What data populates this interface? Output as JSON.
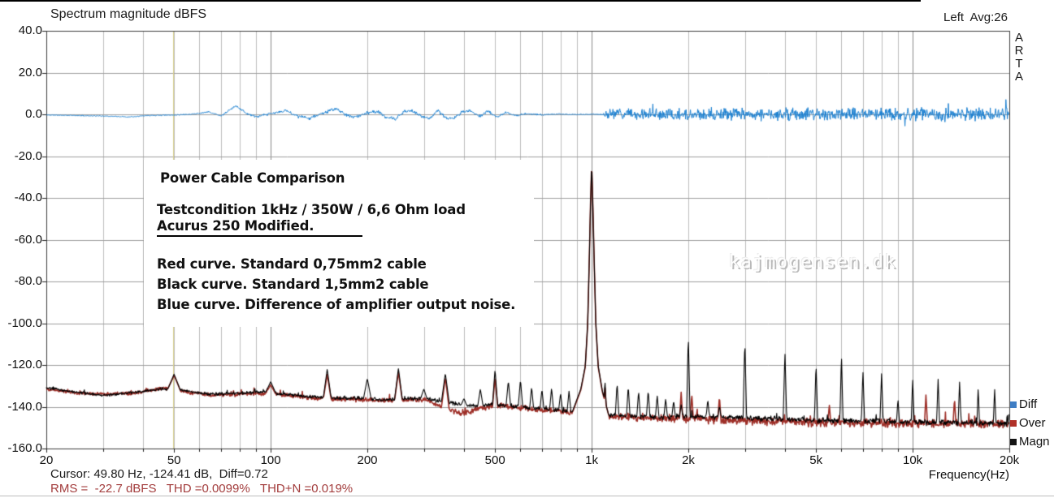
{
  "header": {
    "title": "Spectrum magnitude dBFS",
    "avg_label": "Left  Avg:26"
  },
  "brand": {
    "vertical_label": "ARTA"
  },
  "watermark": "kajmogensen.dk",
  "annotation": {
    "heading": "Power Cable Comparison",
    "testcondition": "Testcondition 1kHz / 350W / 6,6 Ohm load",
    "device": "Acurus 250 Modified.",
    "curve_notes": [
      "Red curve. Standard 0,75mm2 cable",
      "Black curve. Standard 1,5mm2 cable",
      "Blue curve. Difference of amplifier output noise."
    ]
  },
  "legend": [
    {
      "label": "Diff",
      "color": "#3f7ec4"
    },
    {
      "label": "Over",
      "color": "#b03028"
    },
    {
      "label": "Magn",
      "color": "#141414"
    }
  ],
  "status_bar": {
    "cursor_line": "Cursor: 49.80 Hz, -124.41 dB,  Diff=0.72",
    "measure_line": "RMS =  -22.7 dBFS   THD =0.0099%   THD+N =0.019%",
    "measure_color": "#a33d3d"
  },
  "axis": {
    "x_title": "Frequency(Hz)"
  },
  "chart_data": {
    "type": "line",
    "title": "Spectrum magnitude dBFS",
    "xlabel": "Frequency(Hz)",
    "ylabel": "dBFS",
    "x_scale": "log",
    "xlim": [
      20,
      20000
    ],
    "ylim": [
      -160,
      40
    ],
    "grid": true,
    "legend_position": "right-bottom",
    "y_ticks": [
      {
        "db": 40,
        "label": "40.0"
      },
      {
        "db": 20,
        "label": "20.0"
      },
      {
        "db": 0,
        "label": "0.0"
      },
      {
        "db": -20,
        "label": "-20.0"
      },
      {
        "db": -40,
        "label": "-40.0"
      },
      {
        "db": -60,
        "label": "-60.0"
      },
      {
        "db": -80,
        "label": "-80.0"
      },
      {
        "db": -100,
        "label": "-100.0"
      },
      {
        "db": -120,
        "label": "-120.0"
      },
      {
        "db": -140,
        "label": "-140.0"
      },
      {
        "db": -160,
        "label": "-160.0"
      }
    ],
    "x_ticks": [
      {
        "f": 20,
        "label": "20"
      },
      {
        "f": 50,
        "label": "50"
      },
      {
        "f": 100,
        "label": "100"
      },
      {
        "f": 200,
        "label": "200"
      },
      {
        "f": 500,
        "label": "500"
      },
      {
        "f": 1000,
        "label": "1k"
      },
      {
        "f": 2000,
        "label": "2k"
      },
      {
        "f": 5000,
        "label": "5k"
      },
      {
        "f": 10000,
        "label": "10k"
      },
      {
        "f": 20000,
        "label": "20k"
      }
    ],
    "grid_minor": [
      30,
      40,
      50,
      60,
      70,
      80,
      90,
      200,
      300,
      400,
      500,
      600,
      700,
      800,
      900,
      2000,
      3000,
      4000,
      5000,
      6000,
      7000,
      8000,
      9000
    ],
    "grid_major": [
      100,
      1000,
      10000
    ],
    "cursor": {
      "freq_hz": 49.8,
      "level_db": -124.41,
      "diff": 0.72,
      "color": "#d9d08f"
    },
    "series": [
      {
        "name": "Over",
        "kind": "spectrum",
        "color": "#9e2f28",
        "width": 1.6,
        "seed": 77,
        "floor": [
          [
            20,
            -131.5
          ],
          [
            25,
            -133.5
          ],
          [
            30,
            -134
          ],
          [
            38,
            -133.5
          ],
          [
            46,
            -131
          ],
          [
            55,
            -133
          ],
          [
            65,
            -134.5
          ],
          [
            80,
            -134
          ],
          [
            95,
            -133.5
          ],
          [
            110,
            -134.5
          ],
          [
            140,
            -136
          ],
          [
            180,
            -136.5
          ],
          [
            240,
            -137
          ],
          [
            300,
            -136.5
          ],
          [
            355,
            -141
          ],
          [
            400,
            -143.5
          ],
          [
            440,
            -141
          ],
          [
            520,
            -139.5
          ],
          [
            640,
            -141
          ],
          [
            780,
            -142
          ],
          [
            870,
            -143
          ],
          [
            1130,
            -144.5
          ],
          [
            1600,
            -145.5
          ],
          [
            2200,
            -146
          ],
          [
            3200,
            -147
          ],
          [
            5000,
            -147.5
          ],
          [
            8000,
            -148
          ],
          [
            12000,
            -148
          ],
          [
            20000,
            -148.5
          ]
        ],
        "noise_amp": [
          [
            20,
            0.8
          ],
          [
            100,
            1.2
          ],
          [
            1000,
            1.6
          ],
          [
            2000,
            2.2
          ],
          [
            20000,
            2.4
          ]
        ],
        "spikes": [
          [
            50,
            -125,
            0.02
          ],
          [
            100,
            -129.5,
            0.016
          ],
          [
            150,
            -124.5,
            0.012
          ],
          [
            250,
            -123.5,
            0.012
          ],
          [
            350,
            -126,
            0.012
          ],
          [
            500,
            -126,
            0.008
          ],
          [
            1100,
            -130,
            0.0055
          ],
          [
            1900,
            -133,
            0.005
          ],
          [
            2050,
            -134,
            0.005
          ],
          [
            2500,
            -135,
            0.005
          ],
          [
            5500,
            -139,
            0.0045
          ],
          [
            11000,
            -134,
            0.0045
          ],
          [
            13500,
            -136,
            0.0045
          ]
        ],
        "skirt": [
          [
            870,
            -143
          ],
          [
            925,
            -132
          ],
          [
            955,
            -121
          ],
          [
            972,
            -100
          ],
          [
            983,
            -70
          ],
          [
            991,
            -45
          ],
          [
            1000,
            -23.3
          ],
          [
            1009,
            -45
          ],
          [
            1018,
            -70
          ],
          [
            1030,
            -100
          ],
          [
            1048,
            -121
          ],
          [
            1080,
            -133
          ],
          [
            1130,
            -144
          ]
        ]
      },
      {
        "name": "Magn",
        "kind": "spectrum",
        "color": "#000000",
        "width": 1.1,
        "seed": 31,
        "floor": [
          [
            20,
            -131
          ],
          [
            25,
            -133
          ],
          [
            30,
            -134.5
          ],
          [
            38,
            -133
          ],
          [
            46,
            -131.5
          ],
          [
            55,
            -132.5
          ],
          [
            65,
            -134
          ],
          [
            80,
            -133.5
          ],
          [
            95,
            -133
          ],
          [
            110,
            -134
          ],
          [
            140,
            -135.5
          ],
          [
            180,
            -136
          ],
          [
            240,
            -136.5
          ],
          [
            300,
            -136
          ],
          [
            360,
            -138
          ],
          [
            420,
            -139.5
          ],
          [
            520,
            -139
          ],
          [
            640,
            -140.5
          ],
          [
            780,
            -141.5
          ],
          [
            870,
            -142.5
          ],
          [
            1130,
            -144
          ],
          [
            1600,
            -145
          ],
          [
            2200,
            -144.5
          ],
          [
            3200,
            -145.5
          ],
          [
            5000,
            -146.5
          ],
          [
            8000,
            -147
          ],
          [
            12000,
            -147.5
          ],
          [
            20000,
            -148
          ]
        ],
        "noise_amp": [
          [
            20,
            0.8
          ],
          [
            100,
            1.0
          ],
          [
            1000,
            1.2
          ],
          [
            2000,
            1.5
          ],
          [
            20000,
            1.8
          ]
        ],
        "spikes": [
          [
            50,
            -124.4,
            0.02
          ],
          [
            100,
            -128,
            0.016
          ],
          [
            150,
            -122,
            0.012
          ],
          [
            200,
            -126.5,
            0.012
          ],
          [
            250,
            -121.5,
            0.012
          ],
          [
            300,
            -131.5,
            0.01
          ],
          [
            350,
            -124,
            0.012
          ],
          [
            400,
            -136,
            0.008
          ],
          [
            450,
            -131.5,
            0.008
          ],
          [
            500,
            -122,
            0.008
          ],
          [
            550,
            -127.5,
            0.007
          ],
          [
            600,
            -127,
            0.007
          ],
          [
            650,
            -130.5,
            0.006
          ],
          [
            700,
            -131.5,
            0.006
          ],
          [
            750,
            -131,
            0.006
          ],
          [
            800,
            -133.5,
            0.006
          ],
          [
            850,
            -132.5,
            0.006
          ],
          [
            1100,
            -127.5,
            0.0055
          ],
          [
            1200,
            -128.5,
            0.0055
          ],
          [
            1300,
            -130,
            0.0055
          ],
          [
            1400,
            -132.5,
            0.0055
          ],
          [
            1500,
            -132,
            0.0055
          ],
          [
            1600,
            -134.5,
            0.0055
          ],
          [
            1700,
            -136,
            0.0055
          ],
          [
            1800,
            -137,
            0.0055
          ],
          [
            1900,
            -139,
            0.0055
          ],
          [
            2000,
            -105.5,
            0.0055
          ],
          [
            2300,
            -136.5,
            0.005
          ],
          [
            2500,
            -139.5,
            0.005
          ],
          [
            3000,
            -108,
            0.0055
          ],
          [
            4000,
            -113.5,
            0.0055
          ],
          [
            5000,
            -119,
            0.005
          ],
          [
            6000,
            -115,
            0.005
          ],
          [
            7000,
            -122.5,
            0.005
          ],
          [
            8000,
            -124,
            0.005
          ],
          [
            9000,
            -136,
            0.0045
          ],
          [
            10000,
            -126,
            0.0045
          ],
          [
            12000,
            -126.5,
            0.0045
          ],
          [
            14000,
            -128,
            0.0045
          ],
          [
            16000,
            -130.5,
            0.004
          ],
          [
            18000,
            -131,
            0.004
          ],
          [
            20000,
            -141,
            0.004
          ]
        ],
        "skirt": [
          [
            870,
            -142.5
          ],
          [
            925,
            -131.5
          ],
          [
            955,
            -120.5
          ],
          [
            972,
            -100
          ],
          [
            983,
            -70
          ],
          [
            991,
            -45
          ],
          [
            1000,
            -23.3
          ],
          [
            1009,
            -45
          ],
          [
            1018,
            -70
          ],
          [
            1030,
            -100
          ],
          [
            1048,
            -120.5
          ],
          [
            1080,
            -132.5
          ],
          [
            1130,
            -144
          ]
        ]
      },
      {
        "name": "Diff",
        "kind": "noise-band",
        "color": "#1a7fd0",
        "width": 1.0,
        "seed": 11,
        "base": [
          [
            20,
            -0.3
          ],
          [
            30,
            -0.8
          ],
          [
            36,
            -1.2
          ],
          [
            42,
            -0.5
          ],
          [
            50,
            -0.3
          ],
          [
            58,
            0.2
          ],
          [
            64,
            1.2
          ],
          [
            70,
            -0.8
          ],
          [
            78,
            4.2
          ],
          [
            84,
            0.5
          ],
          [
            90,
            -1.2
          ],
          [
            100,
            0.3
          ],
          [
            112,
            1.8
          ],
          [
            122,
            -1
          ],
          [
            132,
            -1.8
          ],
          [
            145,
            0.5
          ],
          [
            160,
            2.8
          ],
          [
            172,
            -0.5
          ],
          [
            185,
            -1.2
          ],
          [
            200,
            0.8
          ],
          [
            215,
            1.4
          ],
          [
            230,
            -1.6
          ],
          [
            245,
            -2.2
          ],
          [
            260,
            1.2
          ],
          [
            275,
            1.8
          ],
          [
            295,
            -1
          ],
          [
            315,
            -1.8
          ],
          [
            330,
            2
          ],
          [
            350,
            -1.5
          ],
          [
            370,
            -2.2
          ],
          [
            395,
            1.2
          ],
          [
            420,
            1.6
          ],
          [
            450,
            -1
          ],
          [
            475,
            1.8
          ],
          [
            505,
            -1.4
          ],
          [
            540,
            0.8
          ],
          [
            580,
            -0.6
          ],
          [
            620,
            0.3
          ],
          [
            700,
            -0.2
          ],
          [
            800,
            0.15
          ],
          [
            900,
            -0.1
          ],
          [
            1000,
            0.1
          ],
          [
            1060,
            0
          ],
          [
            20000,
            0
          ]
        ],
        "noise_amp": [
          [
            20,
            0.25
          ],
          [
            60,
            0.35
          ],
          [
            100,
            0.8
          ],
          [
            200,
            1.0
          ],
          [
            400,
            0.9
          ],
          [
            600,
            0.5
          ],
          [
            900,
            0.35
          ],
          [
            1050,
            0.3
          ],
          [
            1100,
            1.5
          ],
          [
            1150,
            3.2
          ],
          [
            1400,
            3.6
          ],
          [
            3000,
            3.4
          ],
          [
            8000,
            3.5
          ],
          [
            14000,
            3.8
          ],
          [
            20000,
            3.9
          ]
        ],
        "spike_boost": {
          "min_f": 1150,
          "probability": 0.018,
          "factor": 1.9
        }
      }
    ]
  }
}
